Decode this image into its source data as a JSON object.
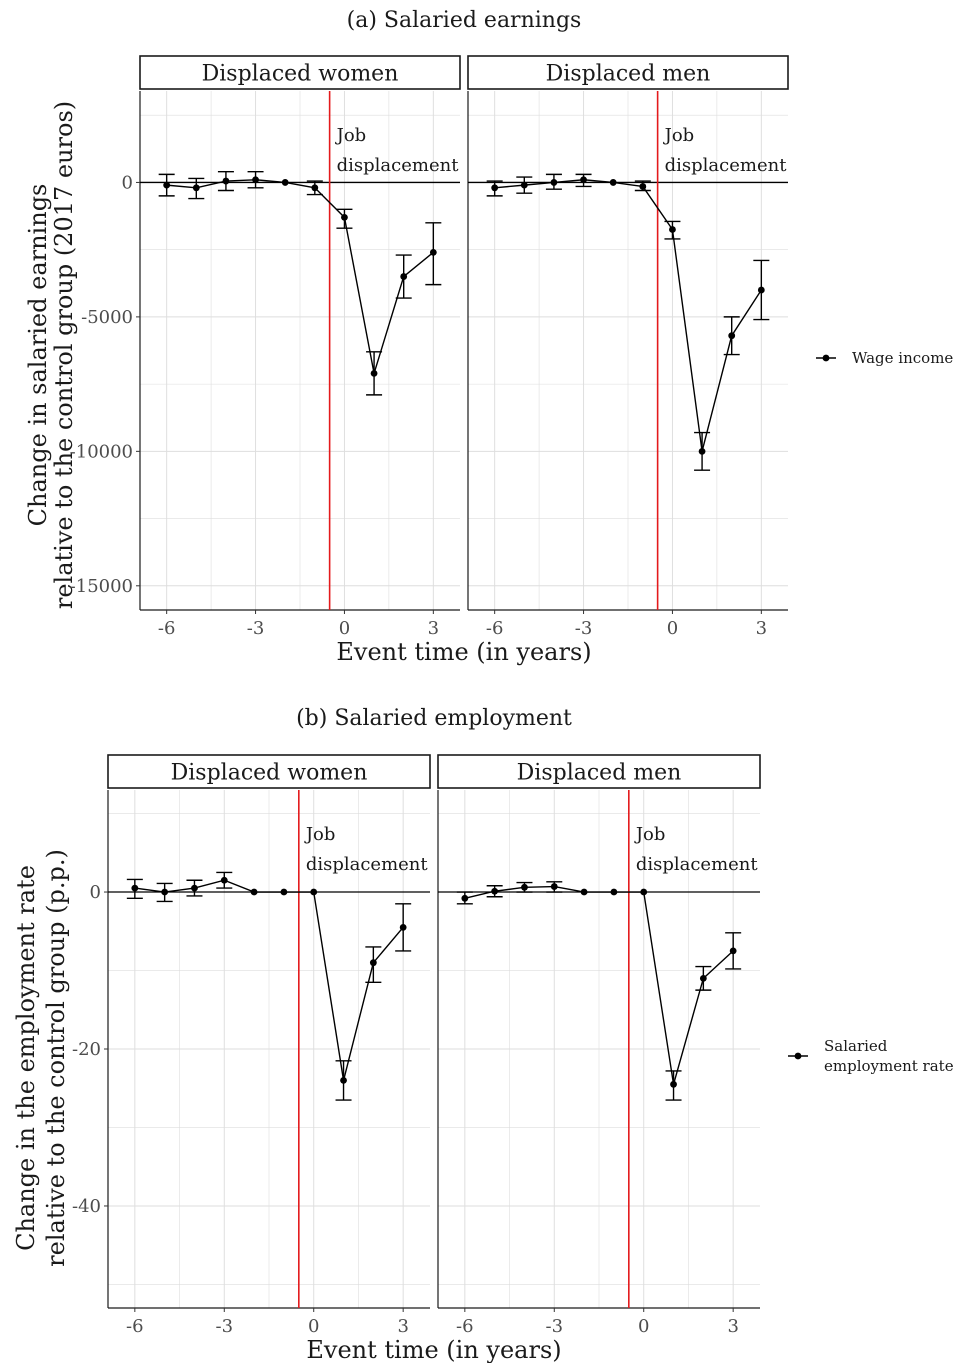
{
  "chart_data": [
    {
      "type": "line",
      "title": "(a) Salaried earnings",
      "xlabel": "Event time (in years)",
      "ylabel_lines": [
        "Change in salaried earnings",
        "relative to the control group (2017 euros)"
      ],
      "xlim": [
        -6.9,
        3.9
      ],
      "ylim": [
        -15900,
        3400
      ],
      "x_ticks": [
        -6,
        -3,
        0,
        3
      ],
      "x_tick_labels": [
        "-6",
        "-3",
        "0",
        "3"
      ],
      "y_ticks": [
        0,
        -5000,
        -10000,
        -15000
      ],
      "y_tick_labels": [
        "0",
        "-5000",
        "-10000",
        "-15000"
      ],
      "grid": true,
      "legend_position": "right",
      "legend_label": [
        "Wage income"
      ],
      "event_line_x": -0.5,
      "annotation_lines": [
        "Job",
        "displacement"
      ],
      "panels": [
        {
          "strip": "Displaced women",
          "series": [
            {
              "x": [
                -6,
                -5,
                -4,
                -3,
                -2,
                -1,
                0,
                1,
                2,
                3
              ],
              "y": [
                -100,
                -200,
                50,
                100,
                0,
                -200,
                -1300,
                -7100,
                -3500,
                -2600
              ],
              "lower": [
                -500,
                -600,
                -300,
                -200,
                0,
                -450,
                -1700,
                -7900,
                -4300,
                -3800
              ],
              "upper": [
                300,
                150,
                400,
                400,
                0,
                50,
                -1000,
                -6300,
                -2700,
                -1500
              ]
            }
          ]
        },
        {
          "strip": "Displaced men",
          "series": [
            {
              "x": [
                -6,
                -5,
                -4,
                -3,
                -2,
                -1,
                0,
                1,
                2,
                3
              ],
              "y": [
                -200,
                -100,
                0,
                100,
                0,
                -150,
                -1750,
                -10000,
                -5700,
                -4000
              ],
              "lower": [
                -500,
                -400,
                -250,
                -150,
                0,
                -300,
                -2100,
                -10700,
                -6400,
                -5100
              ],
              "upper": [
                50,
                200,
                300,
                300,
                0,
                50,
                -1450,
                -9300,
                -5000,
                -2900
              ]
            }
          ]
        }
      ]
    },
    {
      "type": "line",
      "title": "(b) Salaried employment",
      "xlabel": "Event time (in years)",
      "ylabel_lines": [
        "Change in the employment rate",
        "relative to the control group (p.p.)"
      ],
      "xlim": [
        -6.9,
        3.9
      ],
      "ylim": [
        -53,
        13
      ],
      "x_ticks": [
        -6,
        -3,
        0,
        3
      ],
      "x_tick_labels": [
        "-6",
        "-3",
        "0",
        "3"
      ],
      "y_ticks": [
        0,
        -20,
        -40
      ],
      "y_tick_labels": [
        "0",
        "-20",
        "-40"
      ],
      "grid": true,
      "legend_position": "right",
      "legend_label": [
        "Salaried",
        "employment rate"
      ],
      "event_line_x": -0.5,
      "annotation_lines": [
        "Job",
        "displacement"
      ],
      "panels": [
        {
          "strip": "Displaced women",
          "series": [
            {
              "x": [
                -6,
                -5,
                -4,
                -3,
                -2,
                -1,
                0,
                1,
                2,
                3
              ],
              "y": [
                0.5,
                0,
                0.5,
                1.5,
                0,
                0,
                0,
                -24,
                -9,
                -4.5
              ],
              "lower": [
                -0.8,
                -1.2,
                -0.5,
                0.5,
                0,
                0,
                0,
                -26.5,
                -11.5,
                -7.5
              ],
              "upper": [
                1.6,
                1.1,
                1.5,
                2.5,
                0,
                0,
                0,
                -21.5,
                -7,
                -1.5
              ]
            }
          ]
        },
        {
          "strip": "Displaced men",
          "series": [
            {
              "x": [
                -6,
                -5,
                -4,
                -3,
                -2,
                -1,
                0,
                1,
                2,
                3
              ],
              "y": [
                -0.8,
                0.1,
                0.6,
                0.7,
                0,
                0,
                0,
                -24.5,
                -11,
                -7.5
              ],
              "lower": [
                -1.5,
                -0.6,
                0,
                0,
                0,
                0,
                0,
                -26.5,
                -12.5,
                -9.8
              ],
              "upper": [
                0,
                0.8,
                1.2,
                1.3,
                0,
                0,
                0,
                -22.8,
                -9.5,
                -5.2
              ]
            }
          ]
        }
      ]
    }
  ]
}
